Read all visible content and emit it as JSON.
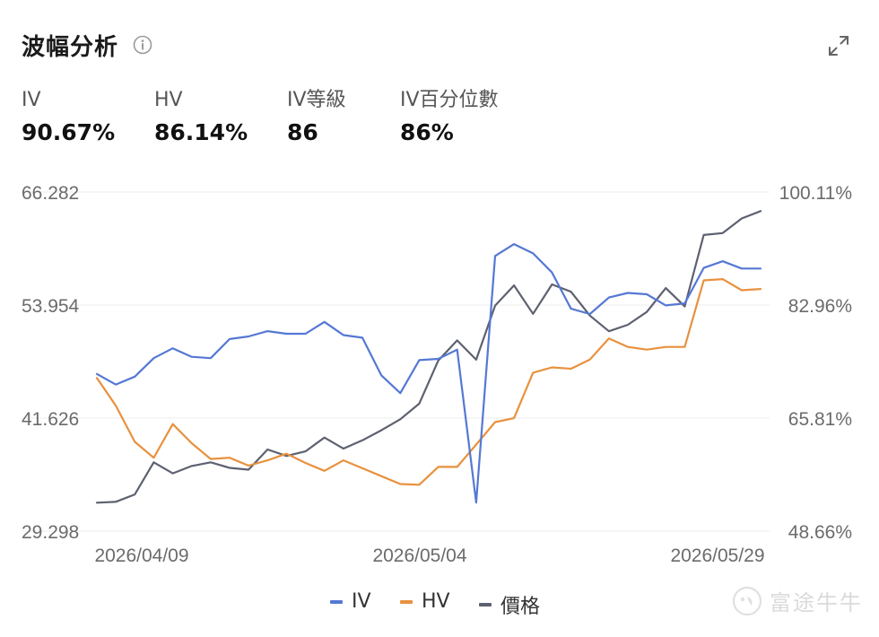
{
  "header": {
    "title": "波幅分析"
  },
  "icons": {
    "info": "info-icon",
    "expand": "expand-icon",
    "logo": "futu-niuniu-logo"
  },
  "stats": [
    {
      "label": "IV",
      "value": "90.67%"
    },
    {
      "label": "HV",
      "value": "86.14%"
    },
    {
      "label": "IV等級",
      "value": "86"
    },
    {
      "label": "IV百分位數",
      "value": "86%"
    }
  ],
  "watermark": {
    "text": "富途牛牛"
  },
  "chart_data": {
    "type": "line",
    "x_ticks": [
      "2026/04/09",
      "2026/05/04",
      "2026/05/29"
    ],
    "left_axis": {
      "range": [
        29.298,
        66.282
      ],
      "ticks": [
        "66.282",
        "53.954",
        "41.626",
        "29.298"
      ]
    },
    "right_axis": {
      "range": [
        48.66,
        100.11
      ],
      "ticks": [
        "100.11%",
        "82.96%",
        "65.81%",
        "48.66%"
      ]
    },
    "grid": true,
    "legend_position": "bottom",
    "colors": {
      "IV": "#5578d4",
      "HV": "#e8913e",
      "價格": "#5d6170",
      "grid": "#ececec"
    },
    "series": [
      {
        "name": "IV",
        "axis": "right",
        "values": [
          72.5,
          70.9,
          72.1,
          74.9,
          76.4,
          75.1,
          74.9,
          77.8,
          78.2,
          79.0,
          78.6,
          78.6,
          80.4,
          78.4,
          78.0,
          72.3,
          69.6,
          74.6,
          74.8,
          76.2,
          53.0,
          90.4,
          92.2,
          90.8,
          87.9,
          82.4,
          81.6,
          84.1,
          84.8,
          84.6,
          82.9,
          83.2,
          88.6,
          89.6,
          88.5,
          88.5
        ]
      },
      {
        "name": "HV",
        "axis": "right",
        "values": [
          71.9,
          67.7,
          62.2,
          59.8,
          64.9,
          62.0,
          59.6,
          59.8,
          58.6,
          59.4,
          60.4,
          59.0,
          57.8,
          59.4,
          58.2,
          57.0,
          55.8,
          55.7,
          58.4,
          58.4,
          61.8,
          65.2,
          65.8,
          72.7,
          73.5,
          73.3,
          74.7,
          77.9,
          76.6,
          76.2,
          76.6,
          76.6,
          86.7,
          86.9,
          85.2,
          85.4
        ]
      },
      {
        "name": "價格",
        "axis": "left",
        "values": [
          32.4,
          32.5,
          33.3,
          36.8,
          35.6,
          36.4,
          36.8,
          36.2,
          36.0,
          38.2,
          37.5,
          38.0,
          39.5,
          38.3,
          39.2,
          40.3,
          41.5,
          43.2,
          47.9,
          50.1,
          48.0,
          53.9,
          56.1,
          53.0,
          56.2,
          55.4,
          52.8,
          51.1,
          51.8,
          53.2,
          55.8,
          53.8,
          61.6,
          61.8,
          63.4,
          64.2
        ]
      }
    ]
  }
}
